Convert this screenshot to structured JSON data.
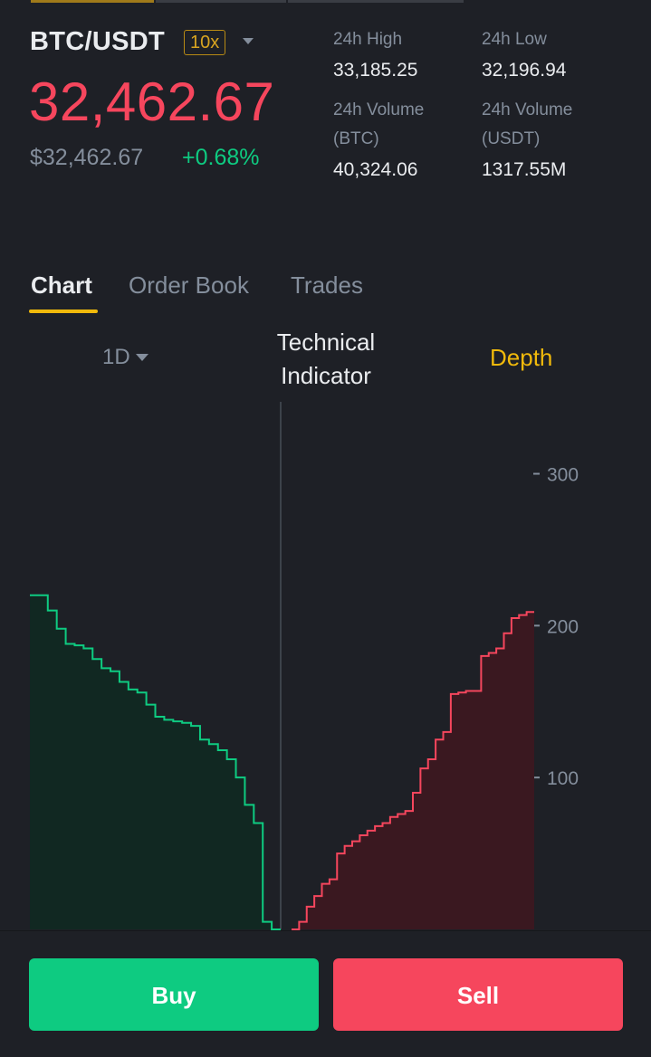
{
  "ticker": {
    "pair": "BTC/USDT",
    "leverage": "10x",
    "last_price": "32,462.67",
    "fiat_price": "$32,462.67",
    "change_pct": "+0.68%"
  },
  "stats": {
    "high_label": "24h High",
    "high_value": "33,185.25",
    "low_label": "24h Low",
    "low_value": "32,196.94",
    "vol_btc_label_1": "24h Volume",
    "vol_btc_label_2": "(BTC)",
    "vol_btc_value": "40,324.06",
    "vol_usdt_label_1": "24h Volume",
    "vol_usdt_label_2": "(USDT)",
    "vol_usdt_value": "1317.55M"
  },
  "tabs": {
    "chart": "Chart",
    "order_book": "Order Book",
    "trades": "Trades"
  },
  "chart_toolbar": {
    "interval": "1D",
    "technical_1": "Technical",
    "technical_2": "Indicator",
    "depth": "Depth"
  },
  "chart_data": {
    "type": "area",
    "ylim": [
      0,
      345
    ],
    "yticks": [
      {
        "value": 300,
        "label": "300"
      },
      {
        "value": 200,
        "label": "200"
      },
      {
        "value": 100,
        "label": "100"
      }
    ],
    "bids": {
      "color": "#0ecb81",
      "fill": "#112822",
      "depth": [
        220,
        220,
        210,
        198,
        188,
        187,
        185,
        178,
        172,
        170,
        163,
        158,
        156,
        148,
        140,
        138,
        137,
        136,
        134,
        125,
        122,
        118,
        112,
        100,
        82,
        70,
        5,
        0
      ]
    },
    "asks": {
      "color": "#f6465d",
      "fill": "#3a1820",
      "depth": [
        0,
        5,
        15,
        22,
        30,
        33,
        50,
        55,
        58,
        62,
        65,
        68,
        70,
        74,
        76,
        78,
        90,
        106,
        112,
        125,
        130,
        155,
        156,
        157,
        157,
        180,
        182,
        185,
        195,
        205,
        207,
        209
      ]
    }
  },
  "actions": {
    "buy": "Buy",
    "sell": "Sell"
  },
  "colors": {
    "background": "#1e2026",
    "accent": "#f0b90b",
    "up": "#0ecb81",
    "down": "#f6465d",
    "muted": "#848e9c"
  }
}
